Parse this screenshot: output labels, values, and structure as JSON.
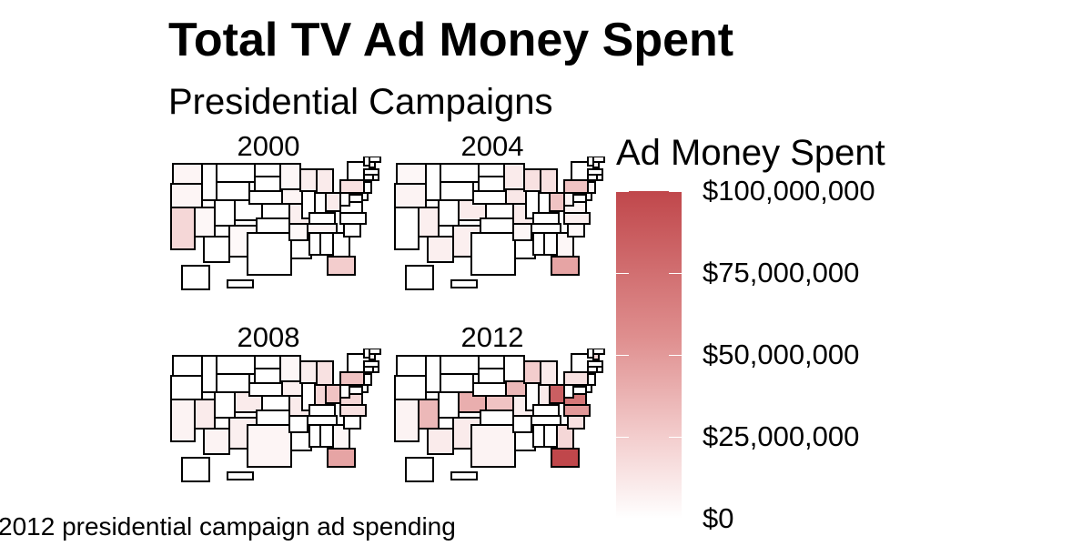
{
  "chart_data": {
    "type": "choropleth",
    "title": "Total TV Ad Money Spent",
    "subtitle": "Presidential Campaigns",
    "caption": "2012 presidential campaign ad spending",
    "facets": [
      {
        "label": "2000",
        "state_spending": {
          "CA": 20000000,
          "FL": 25000000,
          "PA": 15000000,
          "OH": 10000000,
          "MI": 10000000,
          "WI": 8000000,
          "MO": 8000000,
          "OR": 5000000,
          "WA": 5000000,
          "IA": 5000000,
          "TN": 5000000,
          "NM": 3000000,
          "NV": 4000000,
          "NH": 3000000,
          "MN": 4000000,
          "AR": 3000000
        }
      },
      {
        "label": "2004",
        "state_spending": {
          "FL": 45000000,
          "PA": 30000000,
          "OH": 30000000,
          "WI": 15000000,
          "IA": 12000000,
          "MI": 15000000,
          "MN": 10000000,
          "NV": 8000000,
          "NM": 8000000,
          "CO": 10000000,
          "AZ": 8000000,
          "MO": 10000000,
          "NH": 6000000,
          "ME": 4000000,
          "WV": 6000000,
          "OR": 6000000,
          "WA": 4000000,
          "NC": 8000000,
          "VA": 6000000,
          "GA": 4000000,
          "AR": 4000000,
          "SC": 3000000,
          "NJ": 6000000
        }
      },
      {
        "label": "2008",
        "state_spending": {
          "FL": 45000000,
          "OH": 30000000,
          "PA": 30000000,
          "VA": 20000000,
          "NC": 15000000,
          "IN": 20000000,
          "MI": 15000000,
          "CO": 10000000,
          "NV": 10000000,
          "NM": 8000000,
          "IA": 8000000,
          "MO": 10000000,
          "WI": 8000000,
          "NH": 6000000,
          "AZ": 6000000,
          "TX": 5000000,
          "CA": 6000000,
          "GA": 4000000,
          "MN": 4000000
        }
      },
      {
        "label": "2012",
        "state_spending": {
          "FL": 100000000,
          "OH": 85000000,
          "VA": 70000000,
          "NC": 50000000,
          "CO": 40000000,
          "IA": 35000000,
          "NV": 35000000,
          "NH": 20000000,
          "WI": 25000000,
          "PA": 15000000,
          "MI": 10000000,
          "MO": 8000000,
          "KS": 30000000,
          "NM": 10000000,
          "AZ": 10000000,
          "GA": 20000000,
          "SC": 15000000,
          "TX": 6000000,
          "CA": 6000000,
          "IN": 10000000
        }
      }
    ],
    "legend": {
      "title": "Ad Money Spent",
      "min": 0,
      "max": 100000000,
      "ticks": [
        {
          "value": 100000000,
          "label": "$100,000,000"
        },
        {
          "value": 75000000,
          "label": "$75,000,000"
        },
        {
          "value": 50000000,
          "label": "$50,000,000"
        },
        {
          "value": 25000000,
          "label": "$25,000,000"
        },
        {
          "value": 0,
          "label": "$0"
        }
      ],
      "color_low": "#ffffff",
      "color_high": "#c0474b"
    }
  }
}
